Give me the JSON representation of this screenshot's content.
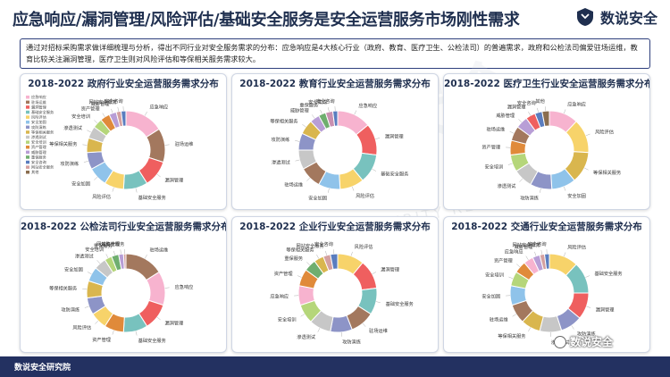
{
  "title": "应急响应/漏洞管理/风险评估/基础安全服务是安全运营服务市场刚性需求",
  "logo_text": "数说安全",
  "intro": "通过对招标采购需求做详细梳理与分析，得出不同行业对安全服务需求的分布：应急响应是4大核心行业（政府、教育、医疗卫生、公检法司）的普遍需求，政府和公检法司偏爱驻场运维，教育比较关注漏洞管理，医疗卫生则对风险评估和等保相关服务需求较大。",
  "footer": "数说安全研究院",
  "watermark": "数说安全",
  "watermark_en": "CYBER SECURITY REVIEWS",
  "badge": "数说安全",
  "colors": {
    "应急响应": "#f7b3cf",
    "驻场运维": "#a3785e",
    "漏洞管理": "#ef5f5f",
    "基础安全服务": "#78c2be",
    "风险评估": "#f7d36a",
    "安全加固": "#8fc3ea",
    "攻防演练": "#8d94c7",
    "等保相关服务": "#d9b64e",
    "渗透测试": "#c7c7c7",
    "安全培训": "#b5d67a",
    "资产管理": "#e08a3a",
    "威胁管理": "#b89ed6",
    "重保服务": "#6fae6f",
    "安全咨询": "#5a7dbf",
    "网站安全服务": "#d4a0a0",
    "其他": "#8a6d4f"
  },
  "chart_data": [
    {
      "type": "pie",
      "title": "2018-2022 政府行业安全运营服务需求分布",
      "legend": [
        "应急响应",
        "驻场运维",
        "漏洞管理",
        "基础安全服务",
        "风险评估",
        "安全加固",
        "攻防演练",
        "等保相关服务",
        "渗透测试",
        "安全培训",
        "资产管理",
        "威胁管理",
        "重保服务",
        "安全咨询",
        "网站安全服务",
        "其他"
      ],
      "slices": [
        {
          "label": "应急响应",
          "value": 16
        },
        {
          "label": "驻场运维",
          "value": 14
        },
        {
          "label": "漏洞管理",
          "value": 11
        },
        {
          "label": "基础安全服务",
          "value": 10
        },
        {
          "label": "风险评估",
          "value": 8
        },
        {
          "label": "安全加固",
          "value": 8
        },
        {
          "label": "攻防演练",
          "value": 7
        },
        {
          "label": "等保相关服务",
          "value": 6
        },
        {
          "label": "渗透测试",
          "value": 5
        },
        {
          "label": "安全培训",
          "value": 4
        },
        {
          "label": "资产管理",
          "value": 4
        },
        {
          "label": "威胁管理",
          "value": 3
        },
        {
          "label": "网站安全服务",
          "value": 2
        },
        {
          "label": "安全咨询",
          "value": 2
        }
      ]
    },
    {
      "type": "pie",
      "title": "2018-2022 教育行业安全运营服务需求分布",
      "slices": [
        {
          "label": "应急响应",
          "value": 14
        },
        {
          "label": "漏洞管理",
          "value": 13
        },
        {
          "label": "基础安全服务",
          "value": 12
        },
        {
          "label": "风险评估",
          "value": 10
        },
        {
          "label": "安全加固",
          "value": 9
        },
        {
          "label": "驻场运维",
          "value": 9
        },
        {
          "label": "渗透测试",
          "value": 8
        },
        {
          "label": "攻防演练",
          "value": 7
        },
        {
          "label": "等保相关服务",
          "value": 6
        },
        {
          "label": "威胁管理",
          "value": 4
        },
        {
          "label": "重保服务",
          "value": 3
        },
        {
          "label": "安全集成",
          "value": 3
        },
        {
          "label": "安全咨询",
          "value": 2
        }
      ]
    },
    {
      "type": "pie",
      "title": "2018-2022 医疗卫生行业安全运营服务需求分布",
      "slices": [
        {
          "label": "应急响应",
          "value": 12
        },
        {
          "label": "风险评估",
          "value": 14
        },
        {
          "label": "等保相关服务",
          "value": 13
        },
        {
          "label": "安全加固",
          "value": 10
        },
        {
          "label": "攻防演练",
          "value": 9
        },
        {
          "label": "渗透测试",
          "value": 8
        },
        {
          "label": "安全培训",
          "value": 7
        },
        {
          "label": "资产管理",
          "value": 6
        },
        {
          "label": "驻场运维",
          "value": 6
        },
        {
          "label": "威胁管理",
          "value": 5
        },
        {
          "label": "漏洞管理",
          "value": 4
        },
        {
          "label": "安全咨询",
          "value": 3
        },
        {
          "label": "其他",
          "value": 3
        }
      ]
    },
    {
      "type": "pie",
      "title": "2018-2022 公检法司行业安全运营服务需求分布",
      "slices": [
        {
          "label": "驻场运维",
          "value": 16
        },
        {
          "label": "应急响应",
          "value": 14
        },
        {
          "label": "漏洞管理",
          "value": 11
        },
        {
          "label": "基础安全服务",
          "value": 10
        },
        {
          "label": "资产管理",
          "value": 8
        },
        {
          "label": "风险评估",
          "value": 7
        },
        {
          "label": "攻防演练",
          "value": 7
        },
        {
          "label": "等保相关服务",
          "value": 7
        },
        {
          "label": "安全加固",
          "value": 6
        },
        {
          "label": "渗透测试",
          "value": 5
        },
        {
          "label": "安全培训",
          "value": 3
        },
        {
          "label": "重保服务",
          "value": 3
        },
        {
          "label": "威胁管理",
          "value": 2
        },
        {
          "label": "网站安全服务",
          "value": 1
        }
      ]
    },
    {
      "type": "pie",
      "title": "2018-2022 企业行业安全运营服务需求分布",
      "slices": [
        {
          "label": "风险评估",
          "value": 11
        },
        {
          "label": "漏洞管理",
          "value": 12
        },
        {
          "label": "基础安全服务",
          "value": 11
        },
        {
          "label": "驻场运维",
          "value": 10
        },
        {
          "label": "攻防演练",
          "value": 9
        },
        {
          "label": "渗透测试",
          "value": 9
        },
        {
          "label": "安全培训",
          "value": 8
        },
        {
          "label": "应急响应",
          "value": 8
        },
        {
          "label": "资产管理",
          "value": 7
        },
        {
          "label": "重保服务",
          "value": 5
        },
        {
          "label": "等保相关服务",
          "value": 4
        },
        {
          "label": "网站安全服务",
          "value": 3
        },
        {
          "label": "安全咨询",
          "value": 3
        }
      ]
    },
    {
      "type": "pie",
      "title": "2018-2022 交通行业安全运营服务需求分布",
      "slices": [
        {
          "label": "风险评估",
          "value": 12
        },
        {
          "label": "基础安全服务",
          "value": 13
        },
        {
          "label": "漏洞管理",
          "value": 11
        },
        {
          "label": "攻防演练",
          "value": 9
        },
        {
          "label": "渗透测试",
          "value": 9
        },
        {
          "label": "等保相关服务",
          "value": 8
        },
        {
          "label": "驻场运维",
          "value": 8
        },
        {
          "label": "安全加固",
          "value": 8
        },
        {
          "label": "安全培训",
          "value": 6
        },
        {
          "label": "资产管理",
          "value": 5
        },
        {
          "label": "应急响应",
          "value": 4
        },
        {
          "label": "威胁管理",
          "value": 3
        },
        {
          "label": "网站安全服务",
          "value": 2
        },
        {
          "label": "安全咨询",
          "value": 2
        }
      ]
    }
  ]
}
